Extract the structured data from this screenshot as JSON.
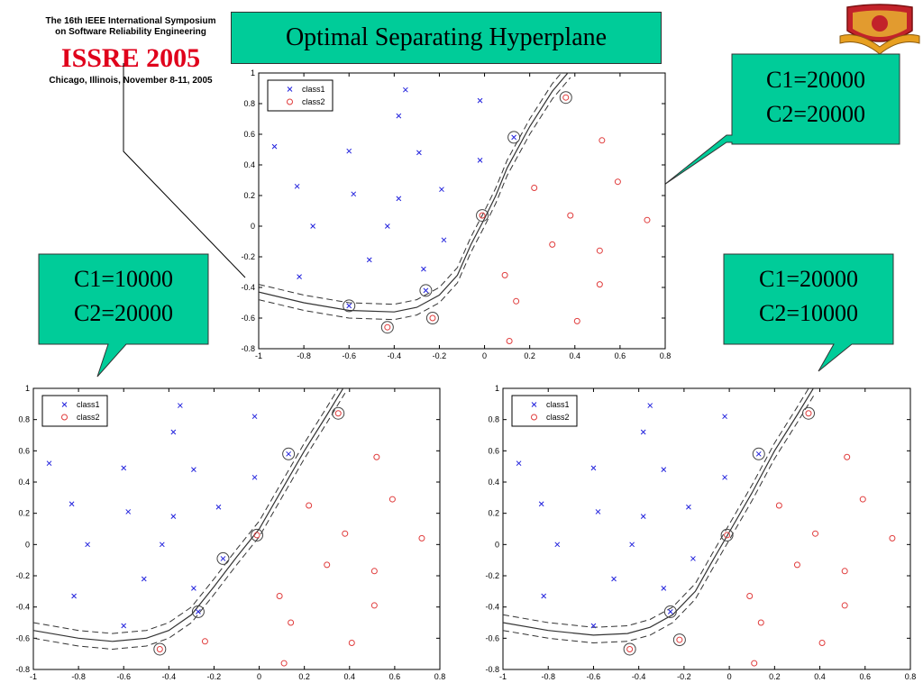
{
  "header": {
    "conference_line1": "The 16th IEEE International Symposium",
    "conference_line2": "on Software Reliability Engineering",
    "conference_name": "ISSRE 2005",
    "conference_place": "Chicago, Illinois, November 8-11, 2005"
  },
  "title": "Optimal Separating Hyperplane",
  "callouts": [
    {
      "c1": "C1=20000",
      "c2": "C2=20000"
    },
    {
      "c1": "C1=10000",
      "c2": "C2=20000"
    },
    {
      "c1": "C1=20000",
      "c2": "C2=10000"
    }
  ],
  "chart_data": [
    {
      "type": "scatter",
      "xlim": [
        -1,
        0.8
      ],
      "ylim": [
        -0.8,
        1
      ],
      "xticks": [
        "-1",
        "-0.8",
        "-0.6",
        "-0.4",
        "-0.2",
        "0",
        "0.2",
        "0.4",
        "0.6",
        "0.8"
      ],
      "yticks": [
        "-0.8",
        "-0.6",
        "-0.4",
        "-0.2",
        "0",
        "0.2",
        "0.4",
        "0.6",
        "0.8",
        "1"
      ],
      "legend": "top-left",
      "series": [
        {
          "name": "class1",
          "marker": "x",
          "color": "#2222dd",
          "points": [
            [
              -0.93,
              0.52
            ],
            [
              -0.83,
              0.26
            ],
            [
              -0.76,
              0.0
            ],
            [
              -0.82,
              -0.33
            ],
            [
              -0.6,
              0.49
            ],
            [
              -0.58,
              0.21
            ],
            [
              -0.51,
              -0.22
            ],
            [
              -0.43,
              0.0
            ],
            [
              -0.38,
              0.18
            ],
            [
              -0.38,
              0.72
            ],
            [
              -0.35,
              0.89
            ],
            [
              -0.29,
              0.48
            ],
            [
              -0.27,
              -0.28
            ],
            [
              -0.19,
              0.24
            ],
            [
              -0.18,
              -0.09
            ],
            [
              -0.02,
              0.82
            ],
            [
              -0.02,
              0.43
            ],
            [
              0.13,
              0.58
            ],
            [
              -0.6,
              -0.52
            ],
            [
              -0.26,
              -0.42
            ]
          ]
        },
        {
          "name": "class2",
          "marker": "o",
          "color": "#e03c3c",
          "points": [
            [
              0.36,
              0.84
            ],
            [
              0.52,
              0.56
            ],
            [
              0.59,
              0.29
            ],
            [
              0.22,
              0.25
            ],
            [
              0.38,
              0.07
            ],
            [
              0.72,
              0.04
            ],
            [
              0.3,
              -0.12
            ],
            [
              0.51,
              -0.16
            ],
            [
              0.09,
              -0.32
            ],
            [
              0.14,
              -0.49
            ],
            [
              0.51,
              -0.38
            ],
            [
              0.41,
              -0.62
            ],
            [
              0.11,
              -0.75
            ],
            [
              -0.01,
              0.07
            ],
            [
              -0.43,
              -0.66
            ],
            [
              -0.23,
              -0.6
            ]
          ]
        },
        {
          "name": "support vectors",
          "marker": "circle",
          "color": "#444444",
          "points": [
            [
              0.36,
              0.84
            ],
            [
              0.13,
              0.58
            ],
            [
              -0.01,
              0.07
            ],
            [
              -0.26,
              -0.42
            ],
            [
              -0.6,
              -0.52
            ],
            [
              -0.43,
              -0.66
            ],
            [
              -0.23,
              -0.6
            ]
          ]
        }
      ],
      "boundary": [
        [
          -1.0,
          -0.43
        ],
        [
          -0.8,
          -0.5
        ],
        [
          -0.6,
          -0.55
        ],
        [
          -0.4,
          -0.56
        ],
        [
          -0.3,
          -0.53
        ],
        [
          -0.2,
          -0.45
        ],
        [
          -0.12,
          -0.32
        ],
        [
          -0.06,
          -0.12
        ],
        [
          0.0,
          0.05
        ],
        [
          0.05,
          0.2
        ],
        [
          0.1,
          0.38
        ],
        [
          0.2,
          0.65
        ],
        [
          0.3,
          0.88
        ],
        [
          0.38,
          1.02
        ]
      ],
      "margin_offset": 0.05
    },
    {
      "type": "scatter",
      "xlim": [
        -1,
        0.8
      ],
      "ylim": [
        -0.8,
        1
      ],
      "xticks": [
        "-1",
        "-0.8",
        "-0.6",
        "-0.4",
        "-0.2",
        "0",
        "0.2",
        "0.4",
        "0.6",
        "0.8"
      ],
      "yticks": [
        "-0.8",
        "-0.6",
        "-0.4",
        "-0.2",
        "0",
        "0.2",
        "0.4",
        "0.6",
        "0.8",
        "1"
      ],
      "legend": "top-left",
      "series": [
        {
          "name": "class1",
          "marker": "x",
          "color": "#2222dd",
          "points": [
            [
              -0.93,
              0.52
            ],
            [
              -0.83,
              0.26
            ],
            [
              -0.76,
              0.0
            ],
            [
              -0.82,
              -0.33
            ],
            [
              -0.6,
              0.49
            ],
            [
              -0.58,
              0.21
            ],
            [
              -0.51,
              -0.22
            ],
            [
              -0.43,
              0.0
            ],
            [
              -0.38,
              0.18
            ],
            [
              -0.38,
              0.72
            ],
            [
              -0.35,
              0.89
            ],
            [
              -0.29,
              0.48
            ],
            [
              -0.29,
              -0.28
            ],
            [
              -0.18,
              0.24
            ],
            [
              -0.16,
              -0.09
            ],
            [
              -0.02,
              0.82
            ],
            [
              -0.02,
              0.43
            ],
            [
              0.13,
              0.58
            ],
            [
              -0.6,
              -0.52
            ],
            [
              -0.27,
              -0.43
            ]
          ]
        },
        {
          "name": "class2",
          "marker": "o",
          "color": "#e03c3c",
          "points": [
            [
              0.35,
              0.84
            ],
            [
              0.52,
              0.56
            ],
            [
              0.59,
              0.29
            ],
            [
              0.22,
              0.25
            ],
            [
              0.38,
              0.07
            ],
            [
              0.72,
              0.04
            ],
            [
              0.3,
              -0.13
            ],
            [
              0.51,
              -0.17
            ],
            [
              0.09,
              -0.33
            ],
            [
              0.14,
              -0.5
            ],
            [
              0.51,
              -0.39
            ],
            [
              0.41,
              -0.63
            ],
            [
              0.11,
              -0.76
            ],
            [
              -0.01,
              0.06
            ],
            [
              -0.44,
              -0.67
            ],
            [
              -0.24,
              -0.62
            ]
          ]
        },
        {
          "name": "support vectors",
          "marker": "circle",
          "color": "#444444",
          "points": [
            [
              0.35,
              0.84
            ],
            [
              0.13,
              0.58
            ],
            [
              -0.01,
              0.06
            ],
            [
              -0.16,
              -0.09
            ],
            [
              -0.27,
              -0.43
            ],
            [
              -0.44,
              -0.67
            ]
          ]
        }
      ],
      "boundary": [
        [
          -1.0,
          -0.55
        ],
        [
          -0.8,
          -0.6
        ],
        [
          -0.65,
          -0.62
        ],
        [
          -0.5,
          -0.6
        ],
        [
          -0.4,
          -0.55
        ],
        [
          -0.3,
          -0.45
        ],
        [
          -0.2,
          -0.27
        ],
        [
          -0.1,
          -0.08
        ],
        [
          0.0,
          0.1
        ],
        [
          0.1,
          0.35
        ],
        [
          0.2,
          0.6
        ],
        [
          0.3,
          0.83
        ],
        [
          0.38,
          1.02
        ]
      ],
      "margin_offset": 0.05
    },
    {
      "type": "scatter",
      "xlim": [
        -1,
        0.8
      ],
      "ylim": [
        -0.8,
        1
      ],
      "xticks": [
        "-1",
        "-0.8",
        "-0.6",
        "-0.4",
        "-0.2",
        "0",
        "0.2",
        "0.4",
        "0.6",
        "0.8"
      ],
      "yticks": [
        "-0.8",
        "-0.6",
        "-0.4",
        "-0.2",
        "0",
        "0.2",
        "0.4",
        "0.6",
        "0.8",
        "1"
      ],
      "legend": "top-left",
      "series": [
        {
          "name": "class1",
          "marker": "x",
          "color": "#2222dd",
          "points": [
            [
              -0.93,
              0.52
            ],
            [
              -0.83,
              0.26
            ],
            [
              -0.76,
              0.0
            ],
            [
              -0.82,
              -0.33
            ],
            [
              -0.6,
              0.49
            ],
            [
              -0.58,
              0.21
            ],
            [
              -0.51,
              -0.22
            ],
            [
              -0.43,
              0.0
            ],
            [
              -0.38,
              0.18
            ],
            [
              -0.38,
              0.72
            ],
            [
              -0.35,
              0.89
            ],
            [
              -0.29,
              0.48
            ],
            [
              -0.29,
              -0.28
            ],
            [
              -0.18,
              0.24
            ],
            [
              -0.16,
              -0.09
            ],
            [
              -0.02,
              0.82
            ],
            [
              -0.02,
              0.43
            ],
            [
              0.13,
              0.58
            ],
            [
              -0.6,
              -0.52
            ],
            [
              -0.26,
              -0.43
            ]
          ]
        },
        {
          "name": "class2",
          "marker": "o",
          "color": "#e03c3c",
          "points": [
            [
              0.35,
              0.84
            ],
            [
              0.52,
              0.56
            ],
            [
              0.59,
              0.29
            ],
            [
              0.22,
              0.25
            ],
            [
              0.38,
              0.07
            ],
            [
              0.72,
              0.04
            ],
            [
              0.3,
              -0.13
            ],
            [
              0.51,
              -0.17
            ],
            [
              0.09,
              -0.33
            ],
            [
              0.14,
              -0.5
            ],
            [
              0.51,
              -0.39
            ],
            [
              0.41,
              -0.63
            ],
            [
              0.11,
              -0.76
            ],
            [
              -0.01,
              0.06
            ],
            [
              -0.44,
              -0.67
            ],
            [
              -0.22,
              -0.61
            ]
          ]
        },
        {
          "name": "support vectors",
          "marker": "circle",
          "color": "#444444",
          "points": [
            [
              0.35,
              0.84
            ],
            [
              0.13,
              0.58
            ],
            [
              -0.01,
              0.06
            ],
            [
              -0.26,
              -0.43
            ],
            [
              -0.44,
              -0.67
            ],
            [
              -0.22,
              -0.61
            ]
          ]
        }
      ],
      "boundary": [
        [
          -1.0,
          -0.5
        ],
        [
          -0.8,
          -0.55
        ],
        [
          -0.6,
          -0.58
        ],
        [
          -0.45,
          -0.57
        ],
        [
          -0.35,
          -0.53
        ],
        [
          -0.25,
          -0.45
        ],
        [
          -0.15,
          -0.3
        ],
        [
          -0.08,
          -0.12
        ],
        [
          0.0,
          0.08
        ],
        [
          0.1,
          0.33
        ],
        [
          0.2,
          0.6
        ],
        [
          0.3,
          0.83
        ],
        [
          0.38,
          1.02
        ]
      ],
      "margin_offset": 0.05
    }
  ]
}
